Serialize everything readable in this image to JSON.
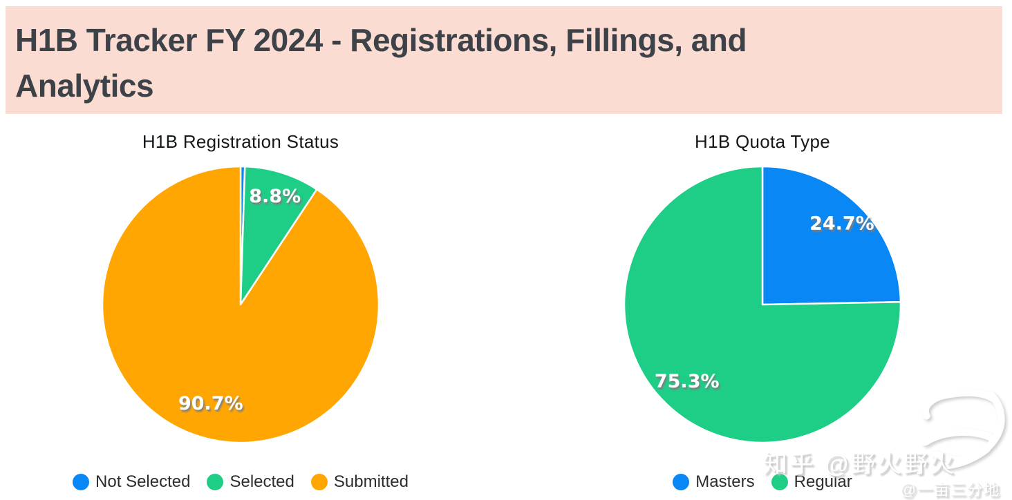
{
  "header": {
    "title": "H1B Tracker FY 2024 - Registrations, Fillings, and Analytics",
    "lines": [
      "H1B Tracker FY 2024 - Registrations, Fillings, and",
      "Analytics"
    ],
    "background": "#FBDCD2",
    "text_color": "#3D4248"
  },
  "colors": {
    "blue": "#0987F5",
    "green": "#1ECE87",
    "orange": "#FFA602",
    "label_text": "#FFFFFF",
    "label_shadow": "#7D7D7D"
  },
  "chart_data": [
    {
      "type": "pie",
      "title": "H1B Registration Status",
      "labels": [
        "Not Selected",
        "Selected",
        "Submitted"
      ],
      "values": [
        0.5,
        8.8,
        90.7
      ],
      "colors": [
        "#0987F5",
        "#1ECE87",
        "#FFA602"
      ],
      "data_labels": [
        "",
        "8.8%",
        "90.7%"
      ],
      "label_radius": [
        0,
        0.82,
        0.75
      ],
      "start_angle_deg": 0,
      "direction": "clockwise",
      "legend_position": "bottom",
      "legend": [
        "Not Selected",
        "Selected",
        "Submitted"
      ]
    },
    {
      "type": "pie",
      "title": "H1B Quota Type",
      "labels": [
        "Masters",
        "Regular"
      ],
      "values": [
        24.7,
        75.3
      ],
      "colors": [
        "#0987F5",
        "#1ECE87"
      ],
      "data_labels": [
        "24.7%",
        "75.3%"
      ],
      "label_radius": [
        0.82,
        0.78
      ],
      "start_angle_deg": 0,
      "direction": "clockwise",
      "legend_position": "bottom",
      "legend": [
        "Masters",
        "Regular"
      ]
    }
  ],
  "watermark": {
    "line1": "知乎 @野火野火",
    "line2": "@一亩三分地",
    "logo": "calligraphy-logo"
  }
}
